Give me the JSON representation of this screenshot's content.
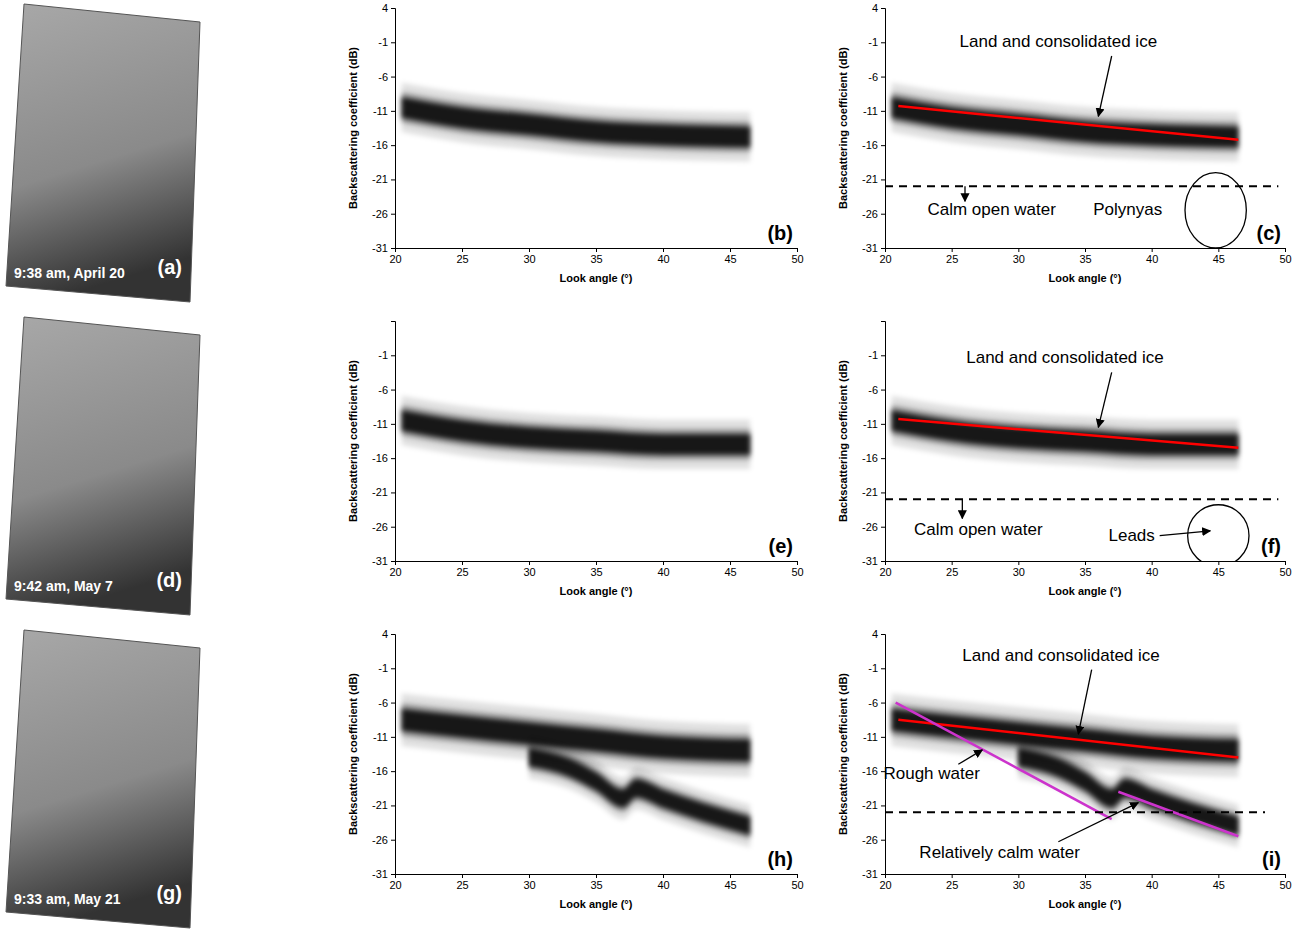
{
  "chart_data": [
    {
      "type": "image",
      "caption": "9:38 am, April 20",
      "panel_label": "(a)"
    },
    {
      "type": "density",
      "panel_label": "(b)",
      "x_label": "Look angle (°)",
      "y_label": "Backscattering coefficient (dB)",
      "xlim": [
        20,
        50
      ],
      "ylim": [
        -31,
        4
      ],
      "xticks": [
        20,
        25,
        30,
        35,
        40,
        45,
        50
      ],
      "yticks": [
        4,
        -1,
        -6,
        -11,
        -16,
        -21,
        -26,
        -31
      ],
      "color": "#000000",
      "bands": [
        {
          "x": [
            20.5,
            25,
            30,
            35,
            40,
            46.5
          ],
          "center": [
            -10.5,
            -12,
            -13,
            -14,
            -14.5,
            -14.8
          ],
          "spread": [
            1.5,
            1.5,
            1.5,
            1.5,
            1.5,
            1.5
          ]
        }
      ]
    },
    {
      "type": "density",
      "panel_label": "(c)",
      "x_label": "Look angle (°)",
      "y_label": "Backscattering coefficient (dB)",
      "xlim": [
        20,
        50
      ],
      "ylim": [
        -31,
        4
      ],
      "xticks": [
        20,
        25,
        30,
        35,
        40,
        45,
        50
      ],
      "yticks": [
        4,
        -1,
        -6,
        -11,
        -16,
        -21,
        -26,
        -31
      ],
      "color": "#000000",
      "bands": [
        {
          "x": [
            20.5,
            25,
            30,
            35,
            40,
            46.5
          ],
          "center": [
            -10.5,
            -12,
            -13,
            -14,
            -14.5,
            -14.8
          ],
          "spread": [
            1.5,
            1.5,
            1.5,
            1.5,
            1.5,
            1.5
          ]
        }
      ],
      "annotations": {
        "lines": [
          {
            "x": [
              21,
              46.5
            ],
            "y": [
              -10.3,
              -15.2
            ],
            "color": "#ff0000",
            "line_style": "solid"
          },
          {
            "x": [
              20,
              49.5
            ],
            "y": [
              -22,
              -22
            ],
            "color": "#000000",
            "line_style": "dashed"
          }
        ],
        "circles": [
          {
            "x": 44.8,
            "y": -25.5,
            "rx": 2.3,
            "ry": 5.5
          }
        ],
        "arrows": [
          {
            "x": [
              37,
              36
            ],
            "y": [
              -3,
              -11.8
            ]
          },
          {
            "x": [
              26,
              26
            ],
            "y": [
              -22,
              -24.2
            ]
          }
        ],
        "texts": [
          {
            "text": "Land and consolidated ice",
            "x": 33,
            "y": -1
          },
          {
            "text": "Calm open water",
            "x": 28,
            "y": -25.6
          },
          {
            "text": "Polynyas",
            "x": 38.2,
            "y": -25.6
          }
        ]
      }
    },
    {
      "type": "image",
      "caption": "9:42 am, May 7",
      "panel_label": "(d)"
    },
    {
      "type": "density",
      "panel_label": "(e)",
      "x_label": "Look angle (°)",
      "y_label": "Backscattering coefficient (dB)",
      "xlim": [
        20,
        50
      ],
      "ylim": [
        -31,
        4
      ],
      "xticks": [
        20,
        25,
        30,
        35,
        40,
        45,
        50
      ],
      "yticks": [
        -1,
        -6,
        -11,
        -16,
        -21,
        -26,
        -31
      ],
      "color": "#000000",
      "bands": [
        {
          "x": [
            20.5,
            25,
            30,
            35,
            40,
            46.5
          ],
          "center": [
            -10.5,
            -12,
            -13,
            -13.5,
            -14,
            -14
          ],
          "spread": [
            1.5,
            1.5,
            1.5,
            1.5,
            1.5,
            1.5
          ]
        }
      ]
    },
    {
      "type": "density",
      "panel_label": "(f)",
      "x_label": "Look angle (°)",
      "y_label": "Backscattering coefficient (dB)",
      "xlim": [
        20,
        50
      ],
      "ylim": [
        -31,
        4
      ],
      "xticks": [
        20,
        25,
        30,
        35,
        40,
        45,
        50
      ],
      "yticks": [
        -1,
        -6,
        -11,
        -16,
        -21,
        -26,
        -31
      ],
      "color": "#000000",
      "bands": [
        {
          "x": [
            20.5,
            25,
            30,
            35,
            40,
            46.5
          ],
          "center": [
            -10.5,
            -12,
            -13,
            -13.5,
            -14,
            -14
          ],
          "spread": [
            1.5,
            1.5,
            1.5,
            1.5,
            1.5,
            1.5
          ]
        }
      ],
      "annotations": {
        "lines": [
          {
            "x": [
              21,
              46.5
            ],
            "y": [
              -10.3,
              -14.5
            ],
            "color": "#ff0000",
            "line_style": "solid"
          },
          {
            "x": [
              20,
              49.5
            ],
            "y": [
              -22,
              -22
            ],
            "color": "#000000",
            "line_style": "dashed"
          }
        ],
        "circles": [
          {
            "x": 45,
            "y": -27.3,
            "rx": 2.3,
            "ry": 4.5
          }
        ],
        "arrows": [
          {
            "x": [
              37,
              36
            ],
            "y": [
              -3.5,
              -11.5
            ]
          },
          {
            "x": [
              25.8,
              25.8
            ],
            "y": [
              -22,
              -24.8
            ]
          },
          {
            "x": [
              40.6,
              44.4
            ],
            "y": [
              -27.3,
              -26.6
            ]
          }
        ],
        "texts": [
          {
            "text": "Land and consolidated ice",
            "x": 33.5,
            "y": -1.5
          },
          {
            "text": "Calm open water",
            "x": 27,
            "y": -26.5
          },
          {
            "text": "Leads",
            "x": 38.5,
            "y": -27.5
          }
        ]
      }
    },
    {
      "type": "image",
      "caption": "9:33 am, May 21",
      "panel_label": "(g)"
    },
    {
      "type": "density",
      "panel_label": "(h)",
      "x_label": "Look angle (°)",
      "y_label": "Backscattering coefficient (dB)",
      "xlim": [
        20,
        50
      ],
      "ylim": [
        -31,
        4
      ],
      "xticks": [
        20,
        25,
        30,
        35,
        40,
        45,
        50
      ],
      "yticks": [
        4,
        -1,
        -6,
        -11,
        -16,
        -21,
        -26,
        -31
      ],
      "color": "#000000",
      "bands": [
        {
          "x": [
            20.5,
            25,
            30,
            35,
            40,
            46.5
          ],
          "center": [
            -8.5,
            -9.5,
            -10.5,
            -11.5,
            -12.5,
            -13
          ],
          "spread": [
            1.6,
            1.6,
            1.6,
            1.6,
            1.6,
            1.6
          ]
        },
        {
          "x": [
            30,
            33,
            35,
            37,
            38,
            40,
            43,
            46.5
          ],
          "center": [
            -14,
            -15.5,
            -17.5,
            -20,
            -18.5,
            -20,
            -22,
            -24
          ],
          "spread": [
            1.3,
            1.3,
            1.3,
            1.3,
            1.3,
            1.3,
            1.3,
            1.3
          ]
        }
      ]
    },
    {
      "type": "density",
      "panel_label": "(i)",
      "x_label": "Look angle (°)",
      "y_label": "Backscattering coefficient (dB)",
      "xlim": [
        20,
        50
      ],
      "ylim": [
        -31,
        4
      ],
      "xticks": [
        20,
        25,
        30,
        35,
        40,
        45,
        50
      ],
      "yticks": [
        4,
        -1,
        -6,
        -11,
        -16,
        -21,
        -26,
        -31
      ],
      "color": "#000000",
      "bands": [
        {
          "x": [
            20.5,
            25,
            30,
            35,
            40,
            46.5
          ],
          "center": [
            -8.5,
            -9.5,
            -10.5,
            -11.5,
            -12.5,
            -13
          ],
          "spread": [
            1.6,
            1.6,
            1.6,
            1.6,
            1.6,
            1.6
          ]
        },
        {
          "x": [
            30,
            33,
            35,
            37,
            38,
            40,
            43,
            46.5
          ],
          "center": [
            -14,
            -15.5,
            -17.5,
            -20,
            -18.5,
            -20,
            -22,
            -24
          ],
          "spread": [
            1.3,
            1.3,
            1.3,
            1.3,
            1.3,
            1.3,
            1.3,
            1.3
          ]
        }
      ],
      "annotations": {
        "lines": [
          {
            "x": [
              21,
              46.5
            ],
            "y": [
              -8.5,
              -14
            ],
            "color": "#ff0000",
            "line_style": "solid"
          },
          {
            "x": [
              20.8,
              37
            ],
            "y": [
              -6,
              -23
            ],
            "color": "#cc33cc",
            "line_style": "solid"
          },
          {
            "x": [
              37.5,
              46.5
            ],
            "y": [
              -19,
              -25.5
            ],
            "color": "#cc33cc",
            "line_style": "solid"
          },
          {
            "x": [
              20,
              48.5
            ],
            "y": [
              -22,
              -22
            ],
            "color": "#000000",
            "line_style": "dashed"
          }
        ],
        "circles": [],
        "arrows": [
          {
            "x": [
              35.5,
              34.5
            ],
            "y": [
              -1.2,
              -10.6
            ]
          },
          {
            "x": [
              25.5,
              27.3
            ],
            "y": [
              -15,
              -12.9
            ]
          },
          {
            "x": [
              33,
              39
            ],
            "y": [
              -26.3,
              -20.6
            ]
          }
        ],
        "texts": [
          {
            "text": "Land and consolidated ice",
            "x": 33.2,
            "y": 0.7
          },
          {
            "text": "Rough water",
            "x": 23.5,
            "y": -16.5
          },
          {
            "text": "Relatively calm water",
            "x": 28.6,
            "y": -28
          }
        ]
      }
    }
  ]
}
